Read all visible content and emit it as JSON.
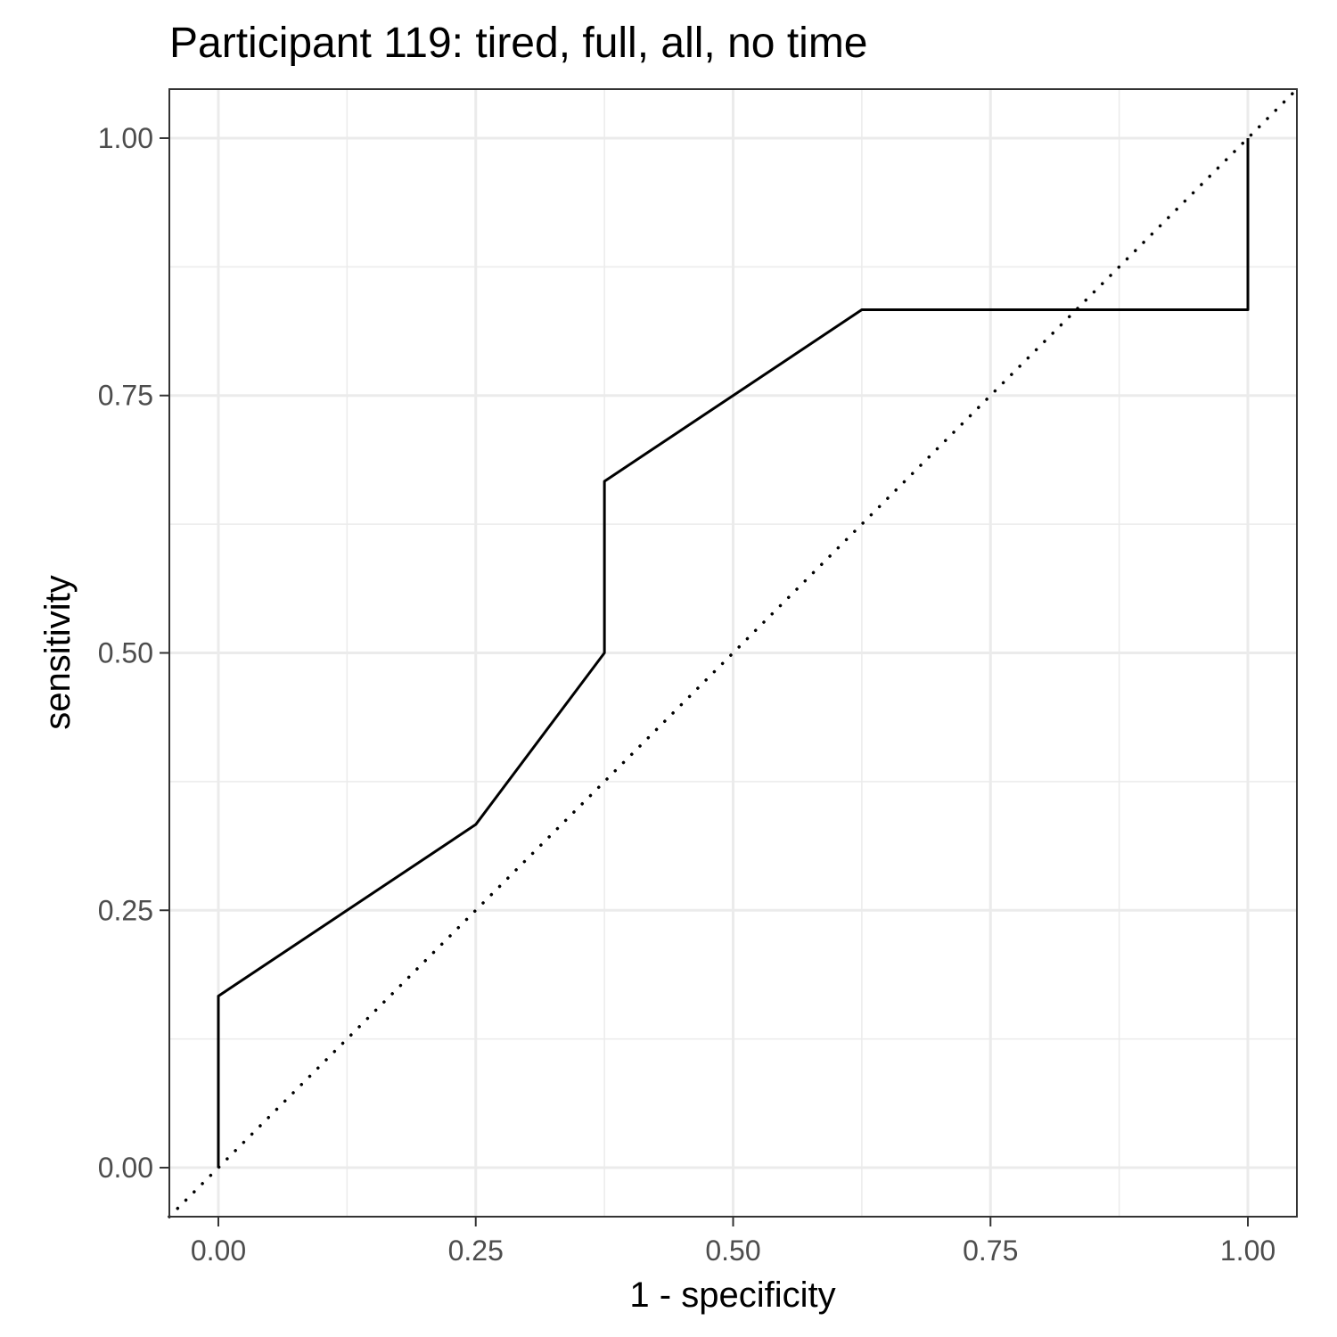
{
  "chart_data": {
    "type": "line",
    "title": "Participant 119: tired, full, all, no time",
    "xlabel": "1 - specificity",
    "ylabel": "sensitivity",
    "xlim": [
      -0.0476,
      1.0476
    ],
    "ylim": [
      -0.0476,
      1.0476
    ],
    "x_ticks": [
      0,
      0.25,
      0.5,
      0.75,
      1
    ],
    "x_tick_labels": [
      "0.00",
      "0.25",
      "0.50",
      "0.75",
      "1.00"
    ],
    "y_ticks": [
      0,
      0.25,
      0.5,
      0.75,
      1
    ],
    "y_tick_labels": [
      "0.00",
      "0.25",
      "0.50",
      "0.75",
      "1.00"
    ],
    "grid": true,
    "series": [
      {
        "style": "solid",
        "color": "#000000",
        "points": [
          [
            0,
            0
          ],
          [
            0,
            0.1667
          ],
          [
            0.25,
            0.3333
          ],
          [
            0.375,
            0.5
          ],
          [
            0.375,
            0.6667
          ],
          [
            0.625,
            0.8333
          ],
          [
            1,
            0.8333
          ],
          [
            1,
            1
          ]
        ]
      },
      {
        "style": "dotted",
        "color": "#000000",
        "points": [
          [
            -0.0476,
            -0.0476
          ],
          [
            1.0476,
            1.0476
          ]
        ]
      }
    ]
  }
}
